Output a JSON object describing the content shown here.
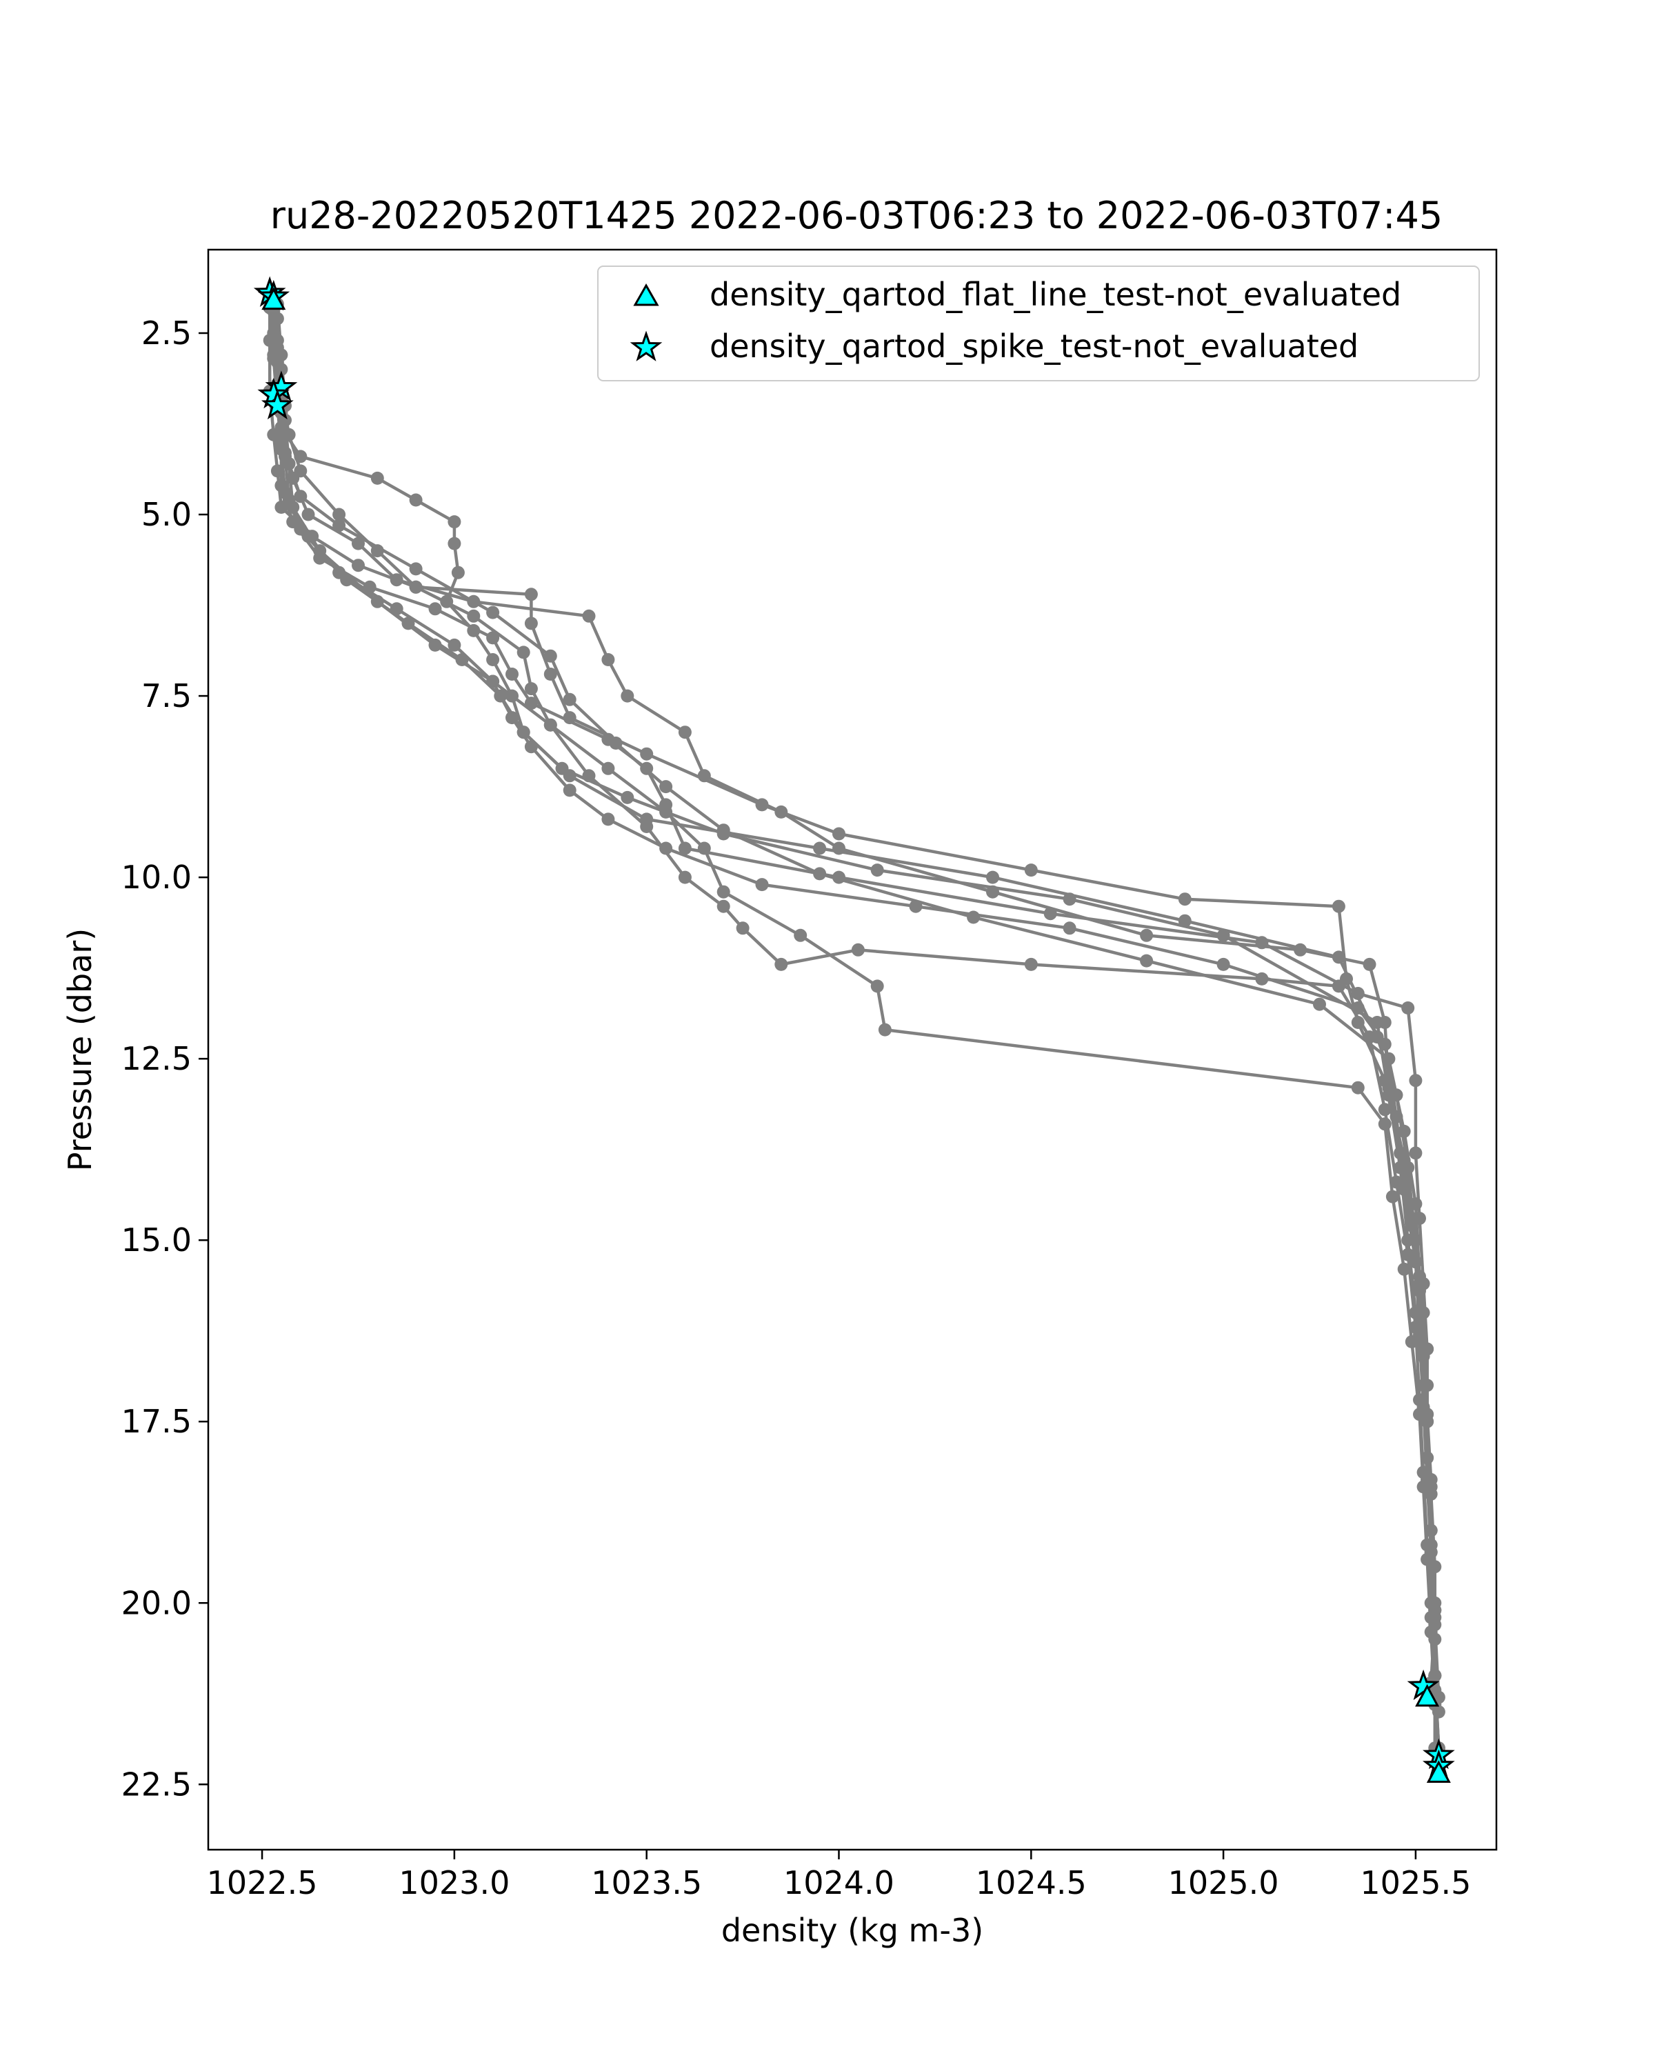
{
  "chart_data": {
    "type": "line",
    "title": "ru28-20220520T1425 2022-06-03T06:23 to 2022-06-03T07:45",
    "xlabel": "density (kg m-3)",
    "ylabel": "Pressure (dbar)",
    "xlim": [
      1022.36,
      1025.71
    ],
    "ylim": [
      23.4,
      1.35
    ],
    "y_inverted": true,
    "grid": false,
    "legend_position": "top-right",
    "xticks": [
      1022.5,
      1023.0,
      1023.5,
      1024.0,
      1024.5,
      1025.0,
      1025.5
    ],
    "xtick_labels": [
      "1022.5",
      "1023.0",
      "1023.5",
      "1024.0",
      "1024.5",
      "1025.0",
      "1025.5"
    ],
    "yticks": [
      2.5,
      5.0,
      7.5,
      10.0,
      12.5,
      15.0,
      17.5,
      20.0,
      22.5
    ],
    "ytick_labels": [
      "2.5",
      "5.0",
      "7.5",
      "10.0",
      "12.5",
      "15.0",
      "17.5",
      "20.0",
      "22.5"
    ],
    "line_color": "#808080",
    "marker_color": "#00ffff",
    "legend": [
      {
        "label": "density_qartod_flat_line_test-not_evaluated",
        "marker": "triangle"
      },
      {
        "label": "density_qartod_spike_test-not_evaluated",
        "marker": "star"
      }
    ],
    "series": [
      {
        "points": [
          [
            1022.52,
            2.0
          ],
          [
            1022.53,
            2.5
          ],
          [
            1022.54,
            3.2
          ],
          [
            1022.55,
            3.8
          ],
          [
            1022.6,
            4.2
          ],
          [
            1022.8,
            4.5
          ],
          [
            1022.9,
            4.8
          ],
          [
            1023.0,
            5.1
          ],
          [
            1023.0,
            5.4
          ],
          [
            1023.01,
            5.8
          ],
          [
            1022.98,
            6.2
          ],
          [
            1023.05,
            6.6
          ],
          [
            1023.1,
            7.0
          ],
          [
            1023.15,
            7.5
          ],
          [
            1023.18,
            8.0
          ],
          [
            1023.3,
            8.6
          ],
          [
            1023.5,
            9.2
          ],
          [
            1023.95,
            9.6
          ],
          [
            1024.4,
            10.0
          ],
          [
            1024.9,
            10.6
          ],
          [
            1025.3,
            11.1
          ],
          [
            1025.4,
            12.2
          ],
          [
            1025.45,
            13.0
          ],
          [
            1025.48,
            14.0
          ],
          [
            1025.5,
            15.0
          ],
          [
            1025.52,
            16.0
          ],
          [
            1025.53,
            17.0
          ],
          [
            1025.53,
            18.0
          ],
          [
            1025.54,
            19.0
          ],
          [
            1025.54,
            20.0
          ],
          [
            1025.55,
            21.0
          ],
          [
            1025.55,
            22.0
          ],
          [
            1025.56,
            22.3
          ]
        ]
      },
      {
        "points": [
          [
            1022.53,
            2.05
          ],
          [
            1022.54,
            2.6
          ],
          [
            1022.55,
            3.3
          ],
          [
            1022.57,
            3.9
          ],
          [
            1022.6,
            4.4
          ],
          [
            1022.7,
            5.0
          ],
          [
            1022.8,
            5.5
          ],
          [
            1022.9,
            6.0
          ],
          [
            1023.2,
            6.1
          ],
          [
            1023.2,
            6.5
          ],
          [
            1023.25,
            7.2
          ],
          [
            1023.3,
            7.8
          ],
          [
            1023.5,
            8.3
          ],
          [
            1023.8,
            9.0
          ],
          [
            1024.0,
            9.4
          ],
          [
            1024.5,
            9.9
          ],
          [
            1024.9,
            10.3
          ],
          [
            1025.3,
            10.4
          ],
          [
            1025.32,
            11.4
          ],
          [
            1025.35,
            12.0
          ],
          [
            1025.42,
            12.8
          ],
          [
            1025.46,
            13.8
          ],
          [
            1025.49,
            14.7
          ],
          [
            1025.51,
            15.6
          ],
          [
            1025.52,
            16.5
          ],
          [
            1025.53,
            17.4
          ],
          [
            1025.53,
            18.3
          ],
          [
            1025.54,
            19.2
          ],
          [
            1025.55,
            20.1
          ],
          [
            1025.55,
            21.0
          ],
          [
            1025.56,
            22.0
          ],
          [
            1025.56,
            22.35
          ]
        ]
      },
      {
        "points": [
          [
            1022.53,
            2.0
          ],
          [
            1022.54,
            2.7
          ],
          [
            1022.55,
            3.4
          ],
          [
            1022.55,
            4.0
          ],
          [
            1022.58,
            4.5
          ],
          [
            1022.62,
            5.0
          ],
          [
            1022.75,
            5.4
          ],
          [
            1022.85,
            5.9
          ],
          [
            1023.05,
            6.2
          ],
          [
            1023.35,
            6.4
          ],
          [
            1023.4,
            7.0
          ],
          [
            1023.45,
            7.5
          ],
          [
            1023.6,
            8.0
          ],
          [
            1023.65,
            8.6
          ],
          [
            1023.85,
            9.1
          ],
          [
            1024.0,
            9.6
          ],
          [
            1024.4,
            10.2
          ],
          [
            1024.8,
            10.8
          ],
          [
            1025.2,
            11.0
          ],
          [
            1025.38,
            11.2
          ],
          [
            1025.42,
            12.0
          ],
          [
            1025.43,
            12.9
          ],
          [
            1025.47,
            13.9
          ],
          [
            1025.49,
            14.8
          ],
          [
            1025.51,
            15.7
          ],
          [
            1025.52,
            16.6
          ],
          [
            1025.53,
            17.5
          ],
          [
            1025.54,
            18.4
          ],
          [
            1025.54,
            19.3
          ],
          [
            1025.55,
            20.2
          ],
          [
            1025.54,
            21.1
          ],
          [
            1025.53,
            21.2
          ]
        ]
      },
      {
        "points": [
          [
            1022.54,
            2.1
          ],
          [
            1022.55,
            2.8
          ],
          [
            1022.56,
            3.5
          ],
          [
            1022.55,
            4.1
          ],
          [
            1022.55,
            4.6
          ],
          [
            1022.58,
            5.1
          ],
          [
            1022.65,
            5.6
          ],
          [
            1022.78,
            6.0
          ],
          [
            1022.95,
            6.3
          ],
          [
            1023.1,
            6.7
          ],
          [
            1023.15,
            7.2
          ],
          [
            1023.2,
            7.6
          ],
          [
            1023.4,
            8.1
          ],
          [
            1023.5,
            8.5
          ],
          [
            1023.55,
            9.0
          ],
          [
            1023.6,
            9.6
          ],
          [
            1024.0,
            10.0
          ],
          [
            1024.55,
            10.5
          ],
          [
            1025.1,
            10.9
          ],
          [
            1025.35,
            11.6
          ],
          [
            1025.48,
            11.8
          ],
          [
            1025.5,
            12.8
          ],
          [
            1025.5,
            13.8
          ],
          [
            1025.51,
            14.7
          ],
          [
            1025.52,
            15.6
          ],
          [
            1025.53,
            16.5
          ],
          [
            1025.53,
            17.4
          ],
          [
            1025.54,
            18.3
          ],
          [
            1025.54,
            19.2
          ],
          [
            1025.55,
            20.1
          ],
          [
            1025.55,
            21.0
          ],
          [
            1025.55,
            21.3
          ]
        ]
      },
      {
        "points": [
          [
            1022.52,
            2.0
          ],
          [
            1022.52,
            2.6
          ],
          [
            1022.52,
            3.3
          ],
          [
            1022.53,
            3.9
          ],
          [
            1022.54,
            4.4
          ],
          [
            1022.55,
            4.9
          ],
          [
            1022.63,
            5.3
          ],
          [
            1022.75,
            5.7
          ],
          [
            1022.9,
            6.0
          ],
          [
            1023.05,
            6.4
          ],
          [
            1023.18,
            6.9
          ],
          [
            1023.2,
            7.4
          ],
          [
            1023.25,
            7.9
          ],
          [
            1023.35,
            8.6
          ],
          [
            1023.5,
            9.3
          ],
          [
            1023.6,
            10.0
          ],
          [
            1023.7,
            10.4
          ],
          [
            1023.75,
            10.7
          ],
          [
            1023.85,
            11.2
          ],
          [
            1024.05,
            11.0
          ],
          [
            1024.5,
            11.2
          ],
          [
            1025.1,
            11.4
          ],
          [
            1025.3,
            11.5
          ],
          [
            1025.38,
            12.2
          ],
          [
            1025.42,
            13.2
          ],
          [
            1025.45,
            14.2
          ],
          [
            1025.48,
            15.2
          ],
          [
            1025.5,
            16.2
          ],
          [
            1025.51,
            17.2
          ],
          [
            1025.52,
            18.2
          ],
          [
            1025.53,
            19.2
          ],
          [
            1025.54,
            20.2
          ],
          [
            1025.55,
            21.2
          ],
          [
            1025.56,
            22.2
          ]
        ]
      },
      {
        "points": [
          [
            1022.53,
            2.1
          ],
          [
            1022.53,
            2.8
          ],
          [
            1022.54,
            3.5
          ],
          [
            1022.55,
            4.1
          ],
          [
            1022.56,
            4.7
          ],
          [
            1022.6,
            5.2
          ],
          [
            1022.7,
            5.8
          ],
          [
            1022.85,
            6.3
          ],
          [
            1023.0,
            6.8
          ],
          [
            1023.1,
            7.3
          ],
          [
            1023.15,
            7.8
          ],
          [
            1023.2,
            8.2
          ],
          [
            1023.3,
            8.8
          ],
          [
            1023.4,
            9.2
          ],
          [
            1023.55,
            9.6
          ],
          [
            1023.8,
            10.1
          ],
          [
            1024.2,
            10.4
          ],
          [
            1024.6,
            10.7
          ],
          [
            1025.0,
            11.2
          ],
          [
            1025.35,
            11.8
          ],
          [
            1025.42,
            12.3
          ],
          [
            1025.45,
            13.3
          ],
          [
            1025.47,
            14.3
          ],
          [
            1025.5,
            15.3
          ],
          [
            1025.51,
            16.3
          ],
          [
            1025.52,
            17.3
          ],
          [
            1025.53,
            18.3
          ],
          [
            1025.54,
            19.3
          ],
          [
            1025.55,
            20.3
          ],
          [
            1025.56,
            21.3
          ]
        ]
      },
      {
        "points": [
          [
            1022.53,
            2.2
          ],
          [
            1022.54,
            2.9
          ],
          [
            1022.55,
            3.6
          ],
          [
            1022.56,
            4.2
          ],
          [
            1022.57,
            4.8
          ],
          [
            1022.62,
            5.3
          ],
          [
            1022.72,
            5.9
          ],
          [
            1022.88,
            6.5
          ],
          [
            1023.02,
            7.0
          ],
          [
            1023.12,
            7.5
          ],
          [
            1023.18,
            8.0
          ],
          [
            1023.28,
            8.5
          ],
          [
            1023.45,
            8.9
          ],
          [
            1023.7,
            9.4
          ],
          [
            1024.1,
            9.9
          ],
          [
            1024.6,
            10.3
          ],
          [
            1025.0,
            10.8
          ],
          [
            1025.4,
            12.0
          ],
          [
            1025.43,
            13.0
          ],
          [
            1025.46,
            14.0
          ],
          [
            1025.48,
            15.0
          ],
          [
            1025.5,
            16.0
          ],
          [
            1025.52,
            17.0
          ],
          [
            1025.53,
            18.0
          ],
          [
            1025.54,
            19.0
          ],
          [
            1025.55,
            20.0
          ],
          [
            1025.55,
            21.0
          ],
          [
            1025.56,
            22.0
          ]
        ]
      },
      {
        "points": [
          [
            1022.54,
            2.3
          ],
          [
            1022.55,
            3.0
          ],
          [
            1022.56,
            3.7
          ],
          [
            1022.57,
            4.3
          ],
          [
            1022.58,
            4.9
          ],
          [
            1022.65,
            5.5
          ],
          [
            1022.8,
            6.2
          ],
          [
            1022.95,
            6.8
          ],
          [
            1023.1,
            7.3
          ],
          [
            1023.25,
            7.9
          ],
          [
            1023.4,
            8.5
          ],
          [
            1023.55,
            9.1
          ],
          [
            1023.65,
            9.6
          ],
          [
            1023.7,
            10.2
          ],
          [
            1023.9,
            10.8
          ],
          [
            1024.1,
            11.5
          ],
          [
            1024.12,
            12.1
          ],
          [
            1025.35,
            12.9
          ],
          [
            1025.42,
            13.4
          ],
          [
            1025.44,
            14.4
          ],
          [
            1025.47,
            15.4
          ],
          [
            1025.49,
            16.4
          ],
          [
            1025.51,
            17.4
          ],
          [
            1025.52,
            18.4
          ],
          [
            1025.53,
            19.4
          ],
          [
            1025.54,
            20.4
          ],
          [
            1025.55,
            21.4
          ],
          [
            1025.56,
            22.3
          ]
        ]
      },
      {
        "points": [
          [
            1022.52,
            2.15
          ],
          [
            1022.53,
            2.85
          ],
          [
            1022.54,
            3.55
          ],
          [
            1022.56,
            4.15
          ],
          [
            1022.6,
            4.75
          ],
          [
            1022.7,
            5.15
          ],
          [
            1022.9,
            5.75
          ],
          [
            1023.1,
            6.35
          ],
          [
            1023.25,
            6.95
          ],
          [
            1023.3,
            7.55
          ],
          [
            1023.42,
            8.15
          ],
          [
            1023.55,
            8.75
          ],
          [
            1023.7,
            9.35
          ],
          [
            1023.95,
            9.95
          ],
          [
            1024.35,
            10.55
          ],
          [
            1024.8,
            11.15
          ],
          [
            1025.25,
            11.75
          ],
          [
            1025.43,
            12.5
          ],
          [
            1025.47,
            13.5
          ],
          [
            1025.5,
            14.5
          ],
          [
            1025.51,
            15.5
          ],
          [
            1025.53,
            16.5
          ],
          [
            1025.53,
            17.5
          ],
          [
            1025.54,
            18.5
          ],
          [
            1025.55,
            19.5
          ],
          [
            1025.55,
            20.5
          ],
          [
            1025.56,
            21.5
          ]
        ]
      }
    ],
    "flagged_points": [
      {
        "x": 1022.52,
        "y": 1.95,
        "test": "spike"
      },
      {
        "x": 1022.53,
        "y": 2.0,
        "test": "spike"
      },
      {
        "x": 1022.53,
        "y": 2.05,
        "test": "flat_line"
      },
      {
        "x": 1022.55,
        "y": 3.25,
        "test": "spike"
      },
      {
        "x": 1022.53,
        "y": 3.35,
        "test": "spike"
      },
      {
        "x": 1022.54,
        "y": 3.5,
        "test": "spike"
      },
      {
        "x": 1025.52,
        "y": 21.15,
        "test": "spike"
      },
      {
        "x": 1025.53,
        "y": 21.3,
        "test": "flat_line"
      },
      {
        "x": 1025.56,
        "y": 22.1,
        "test": "spike"
      },
      {
        "x": 1025.56,
        "y": 22.25,
        "test": "spike"
      },
      {
        "x": 1025.56,
        "y": 22.35,
        "test": "flat_line"
      }
    ]
  }
}
